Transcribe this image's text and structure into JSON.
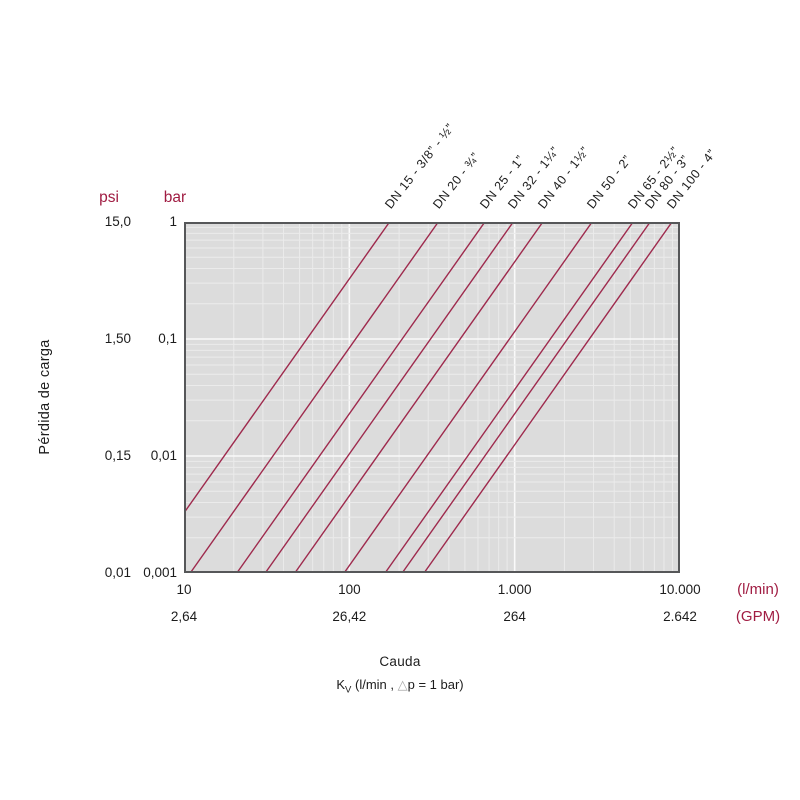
{
  "accent_color": "#a01c42",
  "ylabel": "Pérdida de carga",
  "y_axis": {
    "unit_psi": "psi",
    "unit_bar": "bar",
    "ticks": [
      {
        "psi": "15,0",
        "bar": "1",
        "bar_value": 1
      },
      {
        "psi": "1,50",
        "bar": "0,1",
        "bar_value": 0.1
      },
      {
        "psi": "0,15",
        "bar": "0,01",
        "bar_value": 0.01
      },
      {
        "psi": "0,01",
        "bar": "0,001",
        "bar_value": 0.001
      }
    ]
  },
  "x_axis": {
    "title": "Cauda",
    "unit_lmin": "(l/min)",
    "unit_gpm": "(GPM)",
    "ticks": [
      {
        "lmin": "10",
        "gpm": "2,64",
        "value": 10
      },
      {
        "lmin": "100",
        "gpm": "26,42",
        "value": 100
      },
      {
        "lmin": "1.000",
        "gpm": "264",
        "value": 1000
      },
      {
        "lmin": "10.000",
        "gpm": "2.642",
        "value": 10000
      }
    ],
    "formula": {
      "k": "K",
      "sub": "V",
      "pre": "(l/min ,",
      "delta": "△",
      "post": "p = 1 bar)"
    }
  },
  "chart_data": {
    "type": "line",
    "title": "",
    "xlabel": "Cauda",
    "ylabel": "Pérdida de carga",
    "x_scale": "log",
    "y_scale": "log",
    "x_range_lmin": [
      10,
      10000
    ],
    "y_range_bar": [
      0.001,
      1
    ],
    "relation": "dp_bar = (Q_lmin / Kv_lmin)^2",
    "series": [
      {
        "label": "DN 15 - 3/8” - ½”",
        "kv_lmin": 175
      },
      {
        "label": "DN 20 - ¾”",
        "kv_lmin": 345
      },
      {
        "label": "DN 25 - 1”",
        "kv_lmin": 660
      },
      {
        "label": "DN 32 - 1¼”",
        "kv_lmin": 980
      },
      {
        "label": "DN 40 - 1½”",
        "kv_lmin": 1480
      },
      {
        "label": "DN 50 - 2”",
        "kv_lmin": 2940
      },
      {
        "label": "DN 65 - 2½”",
        "kv_lmin": 5200
      },
      {
        "label": "DN 80 - 3”",
        "kv_lmin": 6600
      },
      {
        "label": "DN 100 - 4”",
        "kv_lmin": 8950
      }
    ],
    "grid": true,
    "line_color": "#9e2a4d",
    "plot_bg": "#dcdcdc",
    "grid_minor": "#ebebeb",
    "grid_major": "#fafafa",
    "border_color": "#565759"
  }
}
